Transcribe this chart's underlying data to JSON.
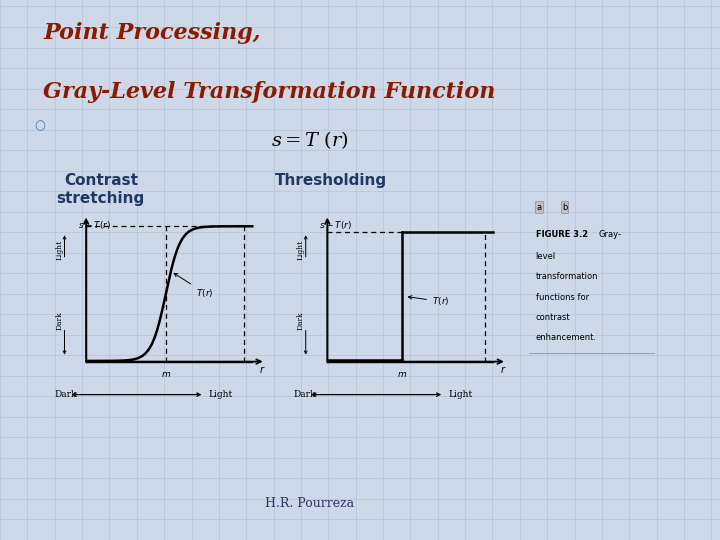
{
  "bg_color": "#cdd8e8",
  "grid_color": "#b0c4d8",
  "title_line1": "Point Processing,",
  "title_line2": "Gray-Level Transformation Function",
  "title_color": "#8B1A00",
  "formula": "$s = T\\ (r)$",
  "formula_color": "#000000",
  "label1": "Contrast\nstretching",
  "label2": "Thresholding",
  "label_color": "#1F3864",
  "footer": "H.R. Pourreza",
  "plot_bg": "#ffffff",
  "line_color": "#4472C4"
}
